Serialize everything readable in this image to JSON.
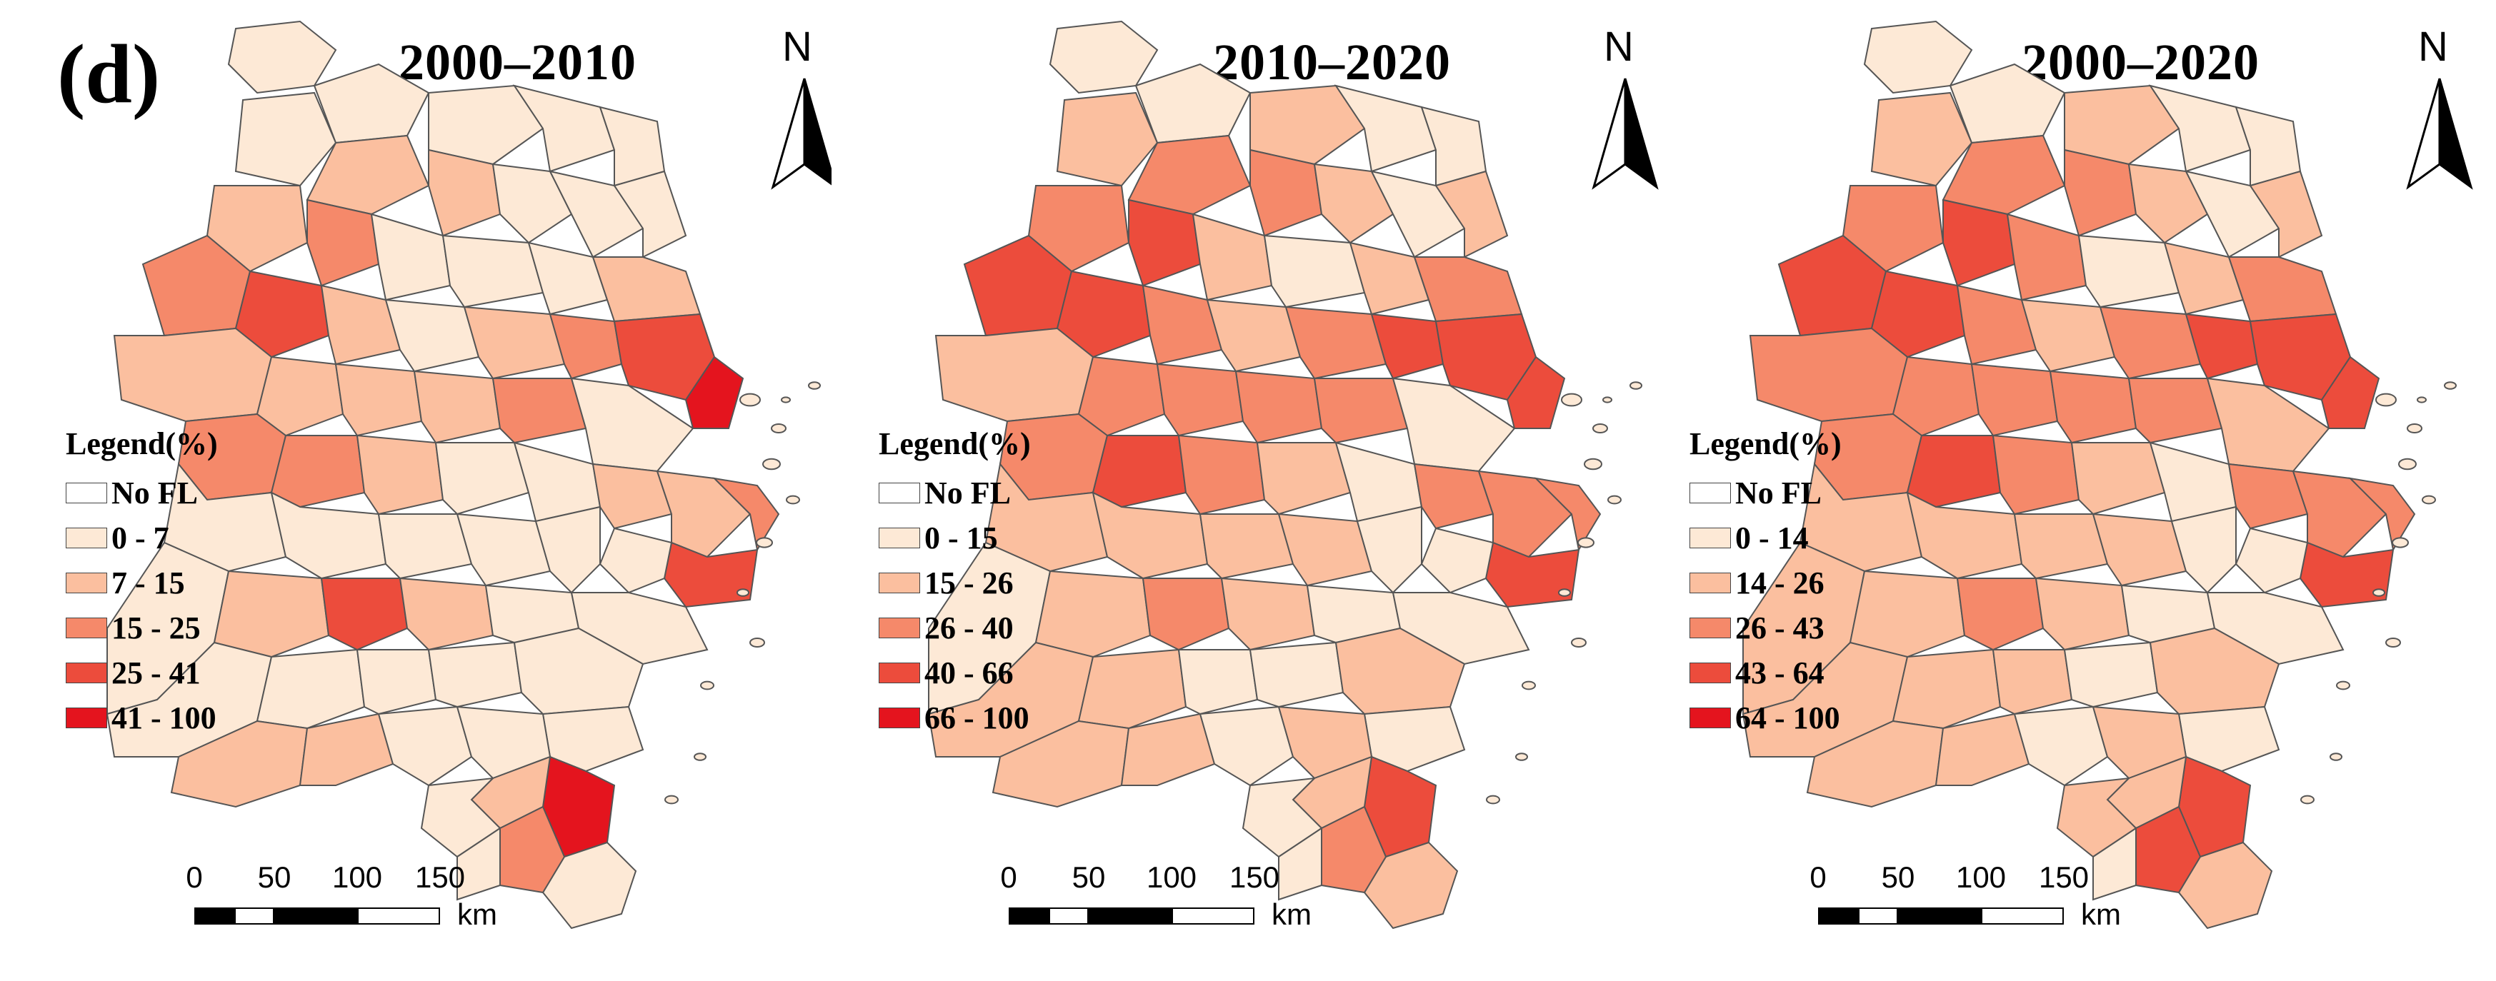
{
  "figure_label": "(d)",
  "colors": {
    "class0": "#ffffff",
    "class1": "#fde9d6",
    "class2": "#fbbf9f",
    "class3": "#f5896a",
    "class4": "#ec4c3c",
    "class5": "#e4141e",
    "border": "#555555"
  },
  "panels": [
    {
      "title": "2000–2010",
      "north_label": "N",
      "legend": {
        "title": "Legend(%)",
        "items": [
          "No FL",
          "0 - 7",
          "7 - 15",
          "15 - 25",
          "25 - 41",
          "41 - 100"
        ]
      },
      "scale_bar": {
        "ticks": [
          "0",
          "50",
          "100",
          "150"
        ],
        "unit": "km"
      },
      "region_classes": [
        1,
        1,
        1,
        1,
        1,
        1,
        2,
        2,
        1,
        1,
        1,
        2,
        3,
        1,
        1,
        1,
        2,
        3,
        4,
        2,
        1,
        2,
        3,
        4,
        5,
        2,
        2,
        2,
        2,
        3,
        1,
        3,
        3,
        2,
        1,
        1,
        2,
        2,
        3,
        4,
        1,
        1,
        1,
        1,
        1,
        1,
        1,
        2,
        4,
        2,
        1,
        1,
        1,
        1,
        1,
        1,
        1,
        2,
        2,
        1,
        1,
        1,
        5,
        2,
        1,
        1,
        3,
        1
      ]
    },
    {
      "title": "2010–2020",
      "north_label": "N",
      "legend": {
        "title": "Legend(%)",
        "items": [
          "No FL",
          "0 - 15",
          "15 - 26",
          "26 - 40",
          "40 - 66",
          "66 - 100"
        ]
      },
      "scale_bar": {
        "ticks": [
          "0",
          "50",
          "100",
          "150"
        ],
        "unit": "km"
      },
      "region_classes": [
        1,
        1,
        2,
        1,
        1,
        2,
        3,
        3,
        2,
        1,
        2,
        3,
        4,
        2,
        1,
        2,
        3,
        4,
        4,
        3,
        2,
        3,
        4,
        4,
        4,
        2,
        3,
        3,
        3,
        3,
        1,
        3,
        4,
        3,
        2,
        1,
        3,
        3,
        3,
        4,
        1,
        2,
        2,
        2,
        2,
        1,
        1,
        2,
        3,
        2,
        1,
        1,
        2,
        2,
        1,
        1,
        2,
        2,
        2,
        1,
        1,
        2,
        4,
        2,
        1,
        2,
        3,
        1
      ]
    },
    {
      "title": "2000–2020",
      "north_label": "N",
      "legend": {
        "title": "Legend(%)",
        "items": [
          "No FL",
          "0 - 14",
          "14 - 26",
          "26 - 43",
          "43 - 64",
          "64 - 100"
        ]
      },
      "scale_bar": {
        "ticks": [
          "0",
          "50",
          "100",
          "150"
        ],
        "unit": "km"
      },
      "region_classes": [
        1,
        1,
        2,
        1,
        1,
        2,
        3,
        3,
        2,
        1,
        2,
        3,
        4,
        3,
        1,
        2,
        3,
        4,
        4,
        3,
        2,
        3,
        4,
        4,
        4,
        3,
        3,
        3,
        3,
        3,
        2,
        3,
        4,
        3,
        2,
        1,
        3,
        3,
        3,
        4,
        1,
        2,
        2,
        2,
        2,
        1,
        2,
        2,
        3,
        2,
        1,
        1,
        2,
        2,
        2,
        1,
        2,
        2,
        2,
        1,
        1,
        2,
        4,
        2,
        2,
        2,
        4,
        1
      ]
    }
  ]
}
